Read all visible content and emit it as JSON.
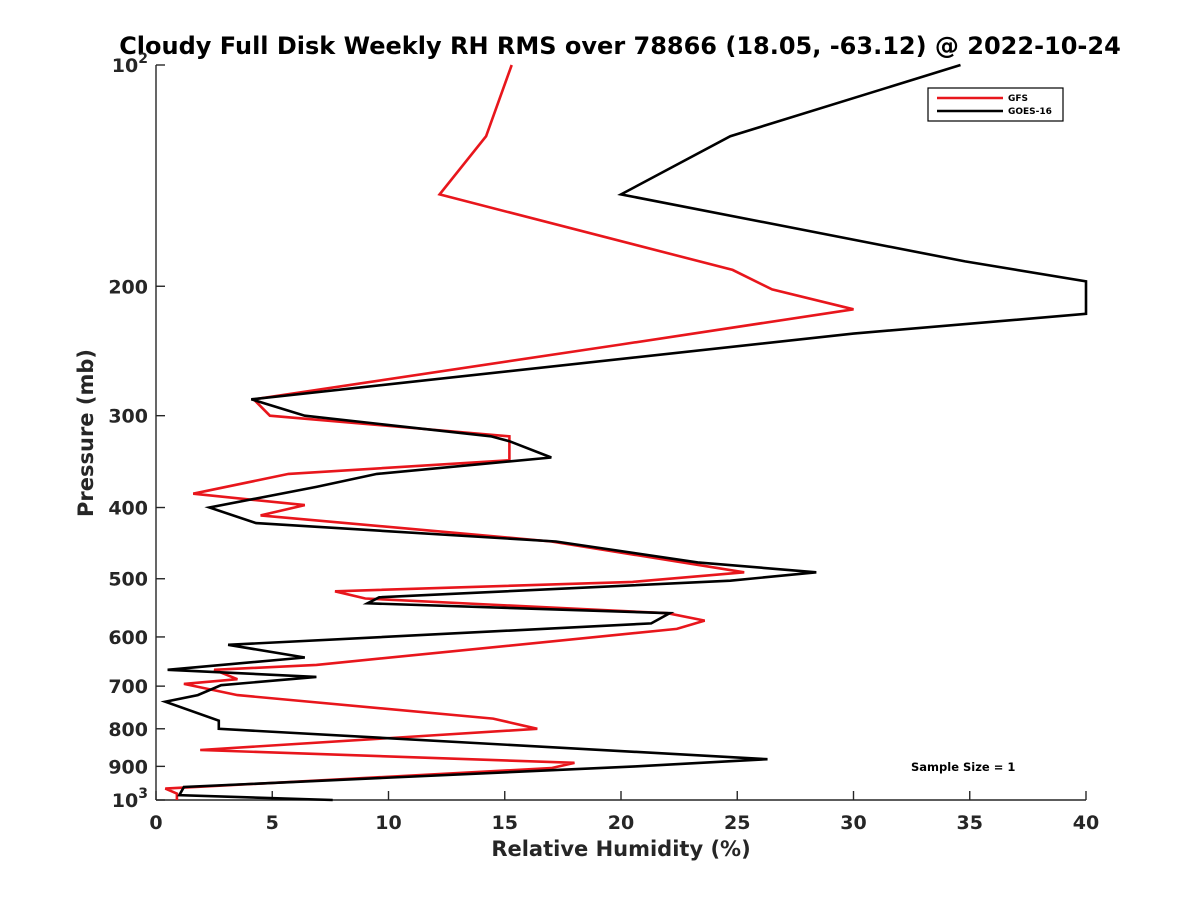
{
  "chart_data": {
    "type": "line",
    "title": "Cloudy Full Disk Weekly RH RMS over 78866 (18.05, -63.12) @ 2022-10-24",
    "xlabel": "Relative Humidity (%)",
    "ylabel": "Pressure (mb)",
    "xlim": [
      0,
      40
    ],
    "ylim": [
      100,
      1000
    ],
    "yscale": "log",
    "y_reversed": true,
    "x_ticks": [
      "0",
      "5",
      "10",
      "15",
      "20",
      "25",
      "30",
      "35",
      "40"
    ],
    "y_ticks": [
      {
        "value": 100,
        "base": "10",
        "exp": "2"
      },
      {
        "value": 200,
        "label": "200"
      },
      {
        "value": 300,
        "label": "300"
      },
      {
        "value": 400,
        "label": "400"
      },
      {
        "value": 500,
        "label": "500"
      },
      {
        "value": 600,
        "label": "600"
      },
      {
        "value": 700,
        "label": "700"
      },
      {
        "value": 800,
        "label": "800"
      },
      {
        "value": 900,
        "label": "900"
      },
      {
        "value": 1000,
        "base": "10",
        "exp": "3"
      }
    ],
    "legend_position": "top-right",
    "annotation": "Sample Size = 1",
    "series": [
      {
        "name": "GFS",
        "color": "#e8161c",
        "points": [
          [
            15.3,
            100
          ],
          [
            14.2,
            125
          ],
          [
            12.2,
            150
          ],
          [
            24.8,
            190
          ],
          [
            26.5,
            202
          ],
          [
            30.0,
            215
          ],
          [
            20.0,
            240
          ],
          [
            4.2,
            285
          ],
          [
            4.9,
            300
          ],
          [
            15.2,
            320
          ],
          [
            15.2,
            345
          ],
          [
            5.7,
            360
          ],
          [
            1.6,
            383
          ],
          [
            6.4,
            397
          ],
          [
            4.5,
            410
          ],
          [
            17.0,
            445
          ],
          [
            25.3,
            490
          ],
          [
            20.5,
            505
          ],
          [
            7.7,
            520
          ],
          [
            9.0,
            532
          ],
          [
            22.0,
            557
          ],
          [
            23.6,
            570
          ],
          [
            22.4,
            585
          ],
          [
            6.9,
            655
          ],
          [
            2.5,
            665
          ],
          [
            3.5,
            685
          ],
          [
            1.2,
            695
          ],
          [
            3.5,
            720
          ],
          [
            14.5,
            775
          ],
          [
            16.4,
            800
          ],
          [
            1.9,
            855
          ],
          [
            18.0,
            890
          ],
          [
            17.0,
            905
          ],
          [
            0.4,
            965
          ],
          [
            0.9,
            980
          ],
          [
            0.9,
            1000
          ]
        ]
      },
      {
        "name": "GOES-16",
        "color": "#000000",
        "points": [
          [
            34.6,
            100
          ],
          [
            24.7,
            125
          ],
          [
            20.0,
            150
          ],
          [
            34.8,
            185
          ],
          [
            40.0,
            197
          ],
          [
            40.0,
            218
          ],
          [
            30.0,
            232
          ],
          [
            4.1,
            285
          ],
          [
            6.4,
            300
          ],
          [
            14.4,
            320
          ],
          [
            15.2,
            325
          ],
          [
            17.0,
            342
          ],
          [
            9.5,
            360
          ],
          [
            6.9,
            375
          ],
          [
            2.3,
            400
          ],
          [
            4.3,
            420
          ],
          [
            17.2,
            445
          ],
          [
            23.3,
            475
          ],
          [
            28.4,
            490
          ],
          [
            24.7,
            503
          ],
          [
            9.6,
            530
          ],
          [
            9.1,
            540
          ],
          [
            22.1,
            557
          ],
          [
            21.3,
            575
          ],
          [
            3.1,
            615
          ],
          [
            6.4,
            640
          ],
          [
            0.5,
            665
          ],
          [
            6.9,
            680
          ],
          [
            2.8,
            698
          ],
          [
            1.8,
            720
          ],
          [
            0.4,
            735
          ],
          [
            2.7,
            780
          ],
          [
            2.7,
            800
          ],
          [
            26.3,
            880
          ],
          [
            20.6,
            900
          ],
          [
            1.2,
            960
          ],
          [
            1.0,
            985
          ],
          [
            7.6,
            1000
          ]
        ]
      }
    ]
  }
}
